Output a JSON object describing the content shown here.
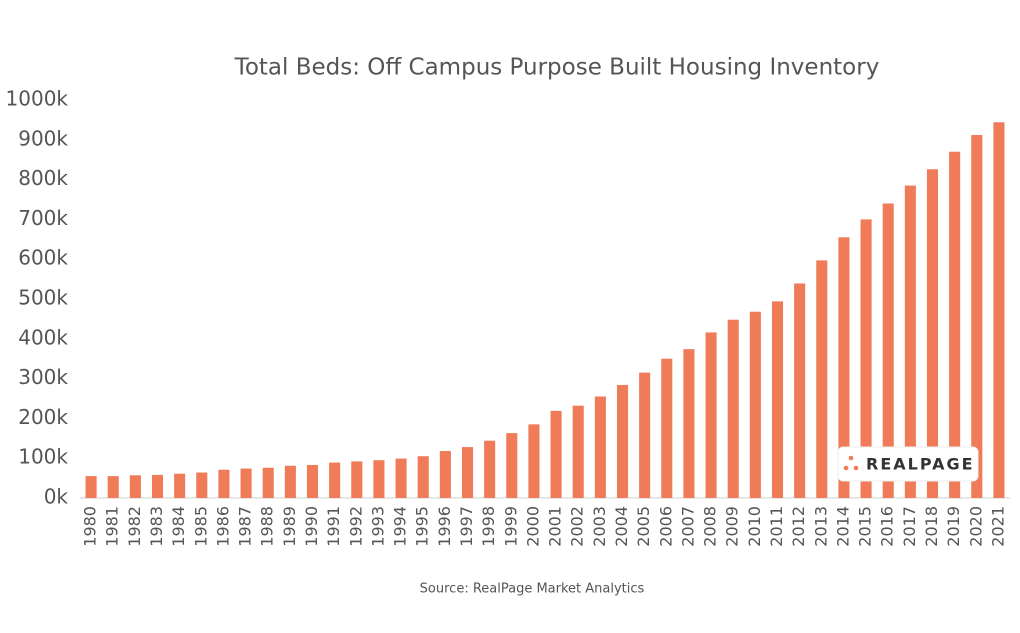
{
  "chart_data": {
    "type": "bar",
    "title": "Total Beds: Off Campus Purpose Built Housing Inventory",
    "source": "Source: RealPage Market Analytics",
    "logo": "REALPAGE",
    "categories": [
      "1980",
      "1981",
      "1982",
      "1983",
      "1984",
      "1985",
      "1986",
      "1987",
      "1988",
      "1989",
      "1990",
      "1991",
      "1992",
      "1993",
      "1994",
      "1995",
      "1996",
      "1997",
      "1998",
      "1999",
      "2000",
      "2001",
      "2002",
      "2003",
      "2004",
      "2005",
      "2006",
      "2007",
      "2008",
      "2009",
      "2010",
      "2011",
      "2012",
      "2013",
      "2014",
      "2015",
      "2016",
      "2017",
      "2018",
      "2019",
      "2020",
      "2021"
    ],
    "values": [
      55000,
      55000,
      57000,
      58000,
      61000,
      64000,
      71000,
      74000,
      76000,
      81000,
      83000,
      89000,
      92000,
      95000,
      99000,
      105000,
      118000,
      128000,
      144000,
      163000,
      185000,
      219000,
      232000,
      255000,
      284000,
      315000,
      350000,
      374000,
      416000,
      448000,
      468000,
      494000,
      539000,
      597000,
      655000,
      700000,
      740000,
      785000,
      826000,
      870000,
      912000,
      944000
    ],
    "color": "#ef7b59",
    "ylim": [
      0,
      1000000
    ],
    "yticks": [
      {
        "value": 0,
        "label": "0k"
      },
      {
        "value": 100000,
        "label": "100k"
      },
      {
        "value": 200000,
        "label": "200k"
      },
      {
        "value": 300000,
        "label": "300k"
      },
      {
        "value": 400000,
        "label": "400k"
      },
      {
        "value": 500000,
        "label": "500k"
      },
      {
        "value": 600000,
        "label": "600k"
      },
      {
        "value": 700000,
        "label": "700k"
      },
      {
        "value": 800000,
        "label": "800k"
      },
      {
        "value": 900000,
        "label": "900k"
      },
      {
        "value": 1000000,
        "label": "1000k"
      }
    ],
    "grid": false
  }
}
